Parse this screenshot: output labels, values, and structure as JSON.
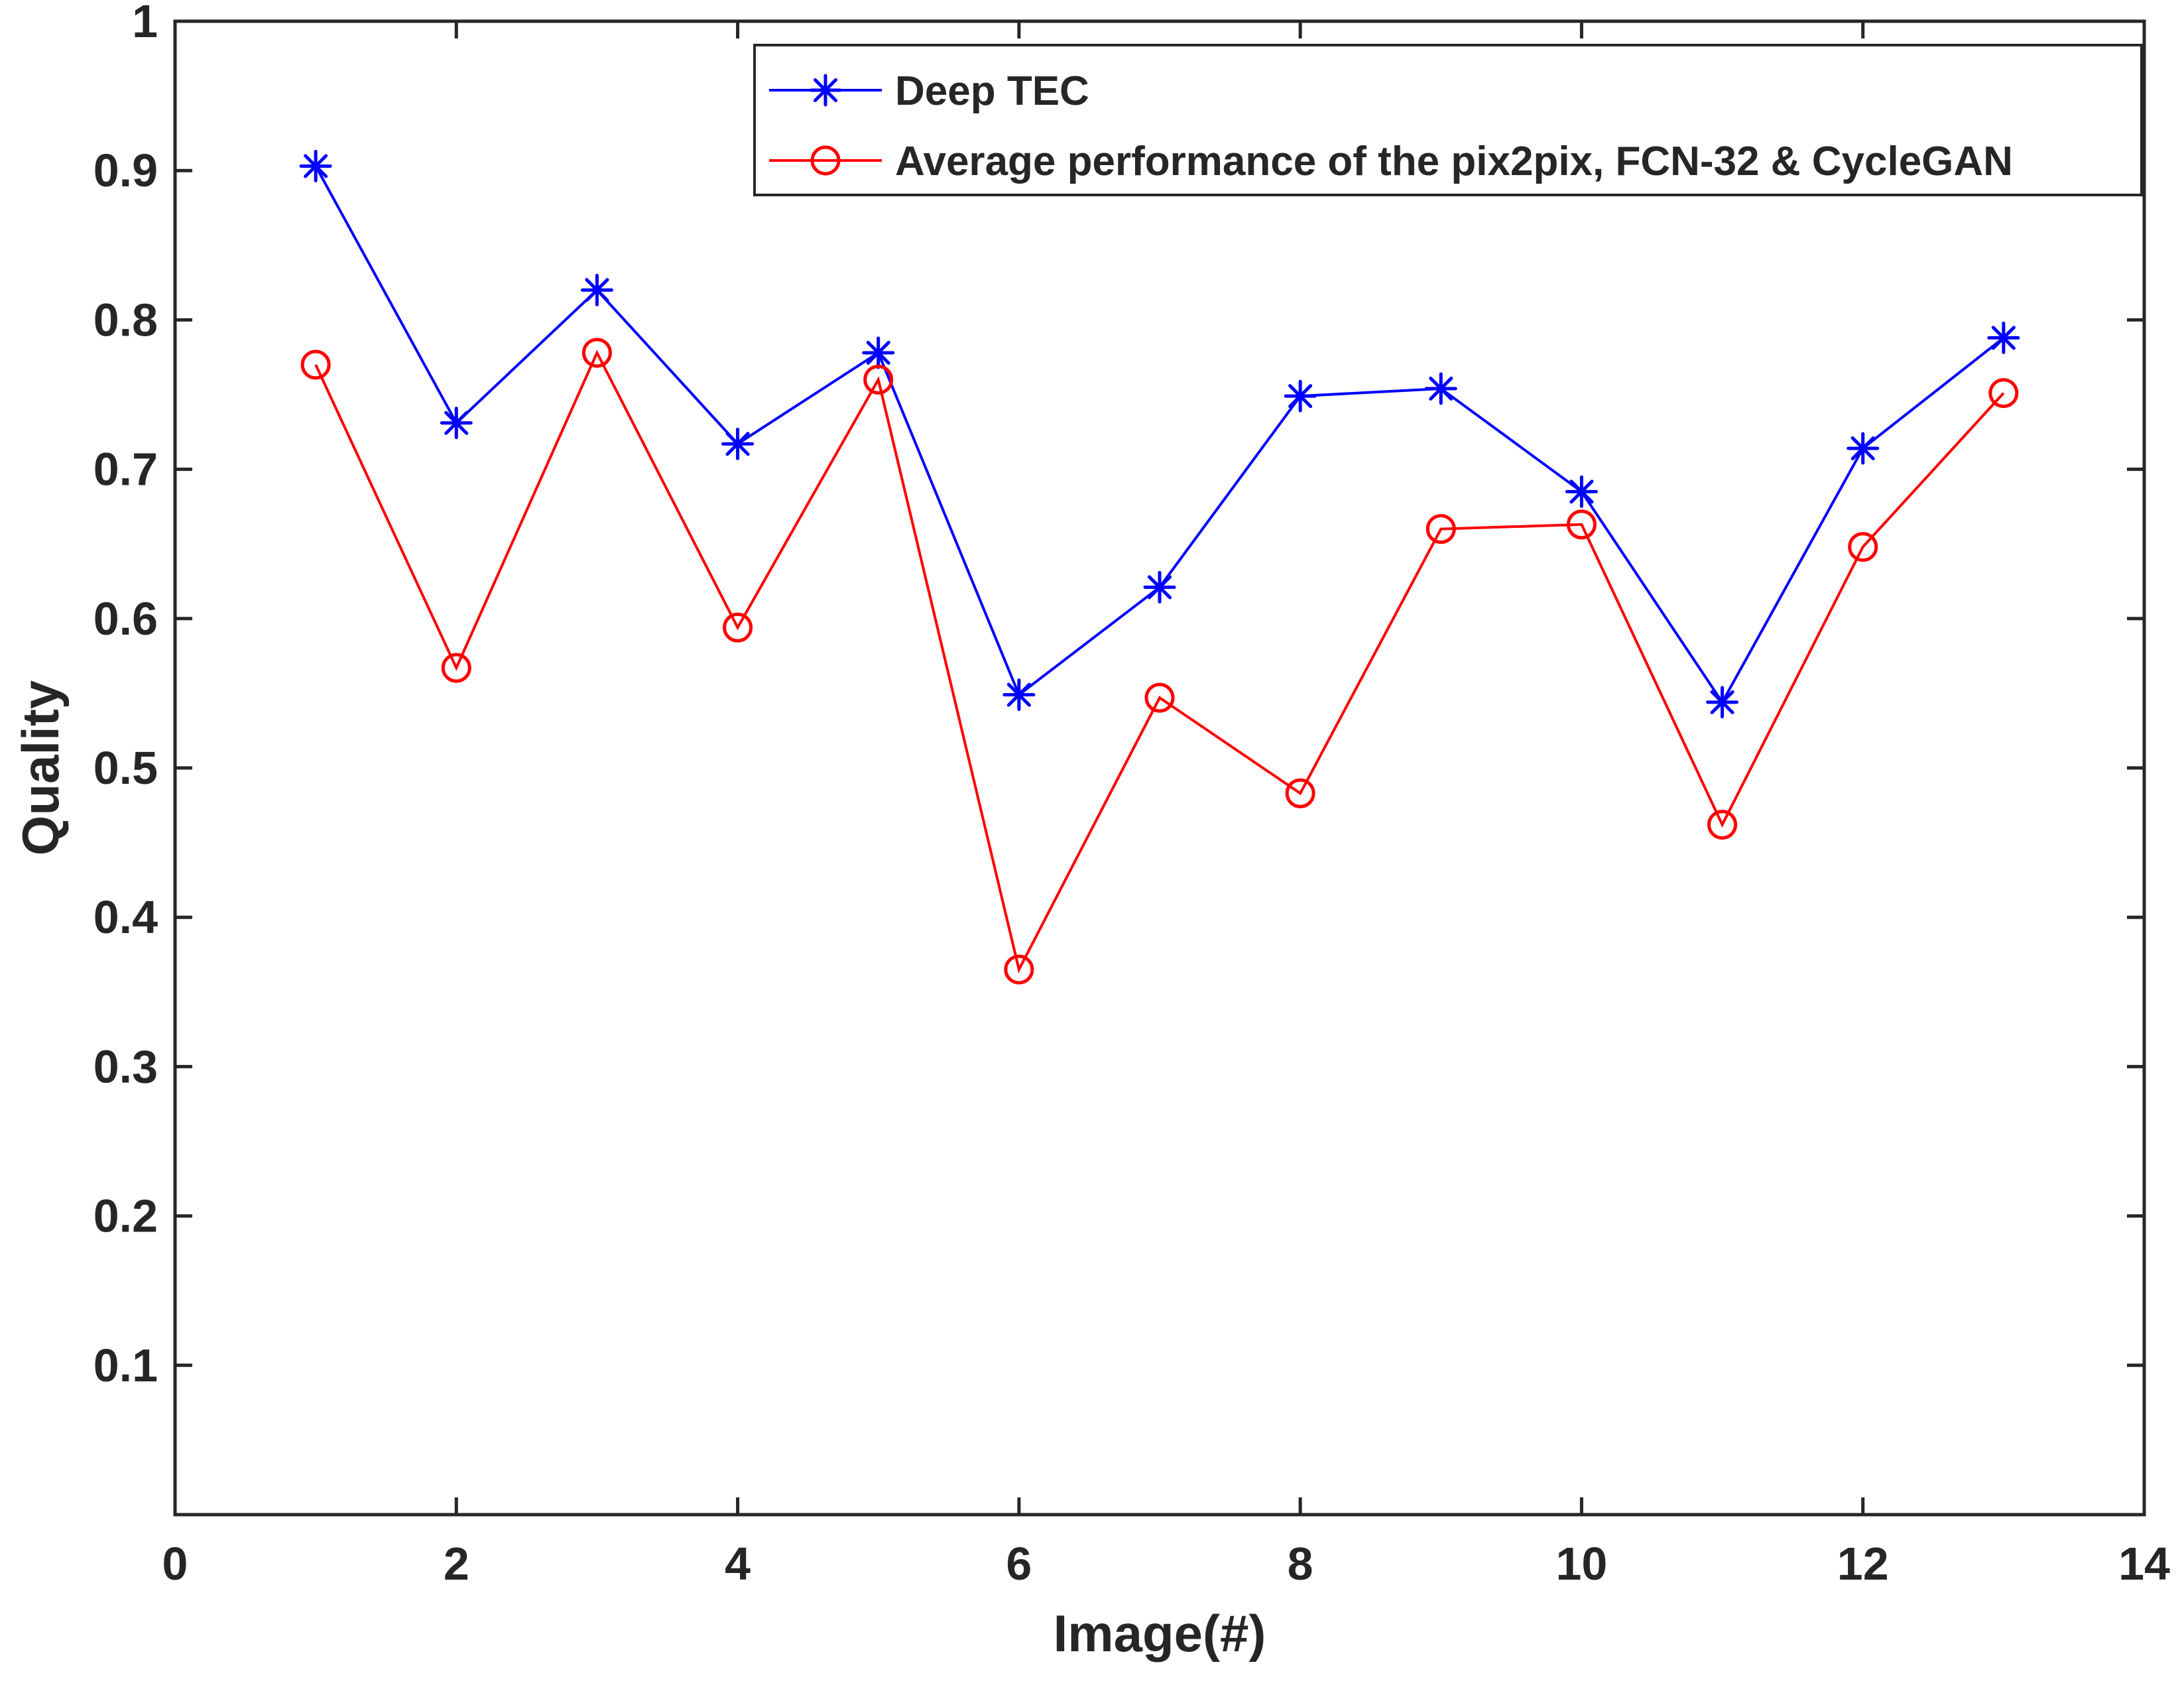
{
  "chart_data": {
    "type": "line",
    "title": "",
    "xlabel": "Image(#)",
    "ylabel": "Quality",
    "xlim": [
      0,
      14
    ],
    "ylim": [
      0,
      1
    ],
    "xticks": [
      0,
      2,
      4,
      6,
      8,
      10,
      12,
      14
    ],
    "xtick_labels": [
      "0",
      "2",
      "4",
      "6",
      "8",
      "10",
      "12",
      "14"
    ],
    "yticks": [
      0.1,
      0.2,
      0.3,
      0.4,
      0.5,
      0.6,
      0.7,
      0.8,
      0.9,
      1.0
    ],
    "ytick_labels": [
      "0.1",
      "0.2",
      "0.3",
      "0.4",
      "0.5",
      "0.6",
      "0.7",
      "0.8",
      "0.9",
      "1"
    ],
    "grid": false,
    "legend_position": "top-right",
    "x": [
      1,
      2,
      3,
      4,
      5,
      6,
      7,
      8,
      9,
      10,
      11,
      12,
      13
    ],
    "series": [
      {
        "name": "Deep TEC",
        "color": "#0000ff",
        "marker": "asterisk",
        "values": [
          0.903,
          0.731,
          0.82,
          0.717,
          0.778,
          0.549,
          0.621,
          0.749,
          0.754,
          0.685,
          0.544,
          0.714,
          0.788
        ]
      },
      {
        "name": "Average performance of the pix2pix, FCN-32 & CycleGAN",
        "color": "#ff0000",
        "marker": "circle",
        "values": [
          0.77,
          0.567,
          0.778,
          0.594,
          0.76,
          0.365,
          0.547,
          0.483,
          0.66,
          0.663,
          0.462,
          0.648,
          0.751
        ]
      }
    ]
  }
}
